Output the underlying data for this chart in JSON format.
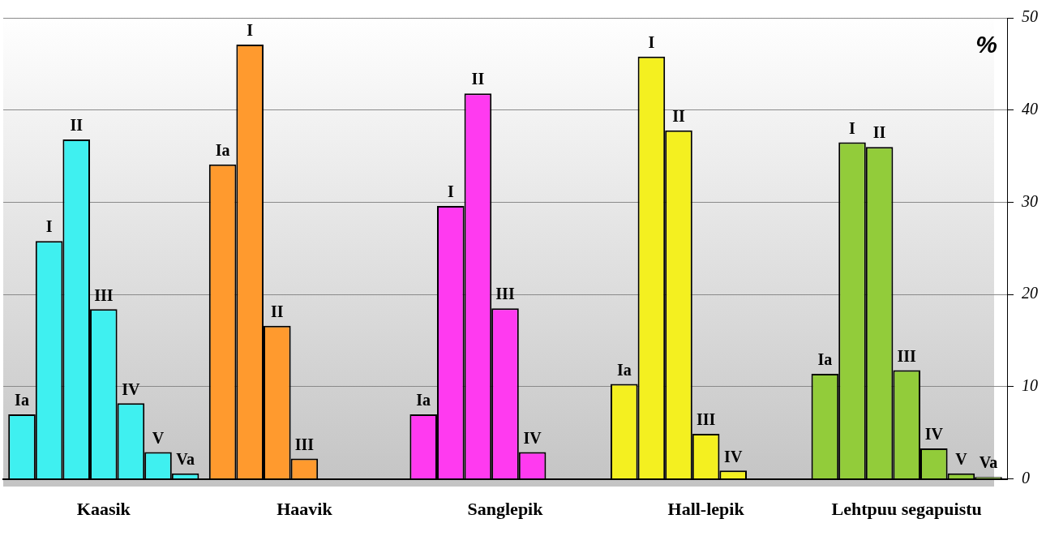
{
  "chart_data": {
    "type": "bar",
    "ylabel": "%",
    "categories": [
      "Kaasik",
      "Haavik",
      "Sanglepik",
      "Hall-lepik",
      "Lehtpuu segapuistu"
    ],
    "series": [
      {
        "name": "Ia",
        "colors": [
          "#3ff0f0",
          "#ff9a2e",
          "#ff3af0",
          "#f4f020",
          "#92cc3a"
        ],
        "values": [
          7.0,
          34.1,
          7.0,
          10.3,
          11.4
        ]
      },
      {
        "name": "I",
        "colors": [
          "#3ff0f0",
          "#ff9a2e",
          "#ff3af0",
          "#f4f020",
          "#92cc3a"
        ],
        "values": [
          25.8,
          47.1,
          29.6,
          45.8,
          36.5
        ]
      },
      {
        "name": "II",
        "colors": [
          "#3ff0f0",
          "#ff9a2e",
          "#ff3af0",
          "#f4f020",
          "#92cc3a"
        ],
        "values": [
          36.8,
          16.6,
          41.8,
          37.8,
          36.0
        ]
      },
      {
        "name": "III",
        "colors": [
          "#3ff0f0",
          "#ff9a2e",
          "#ff3af0",
          "#f4f020",
          "#92cc3a"
        ],
        "values": [
          18.4,
          2.2,
          18.5,
          4.9,
          11.8
        ]
      },
      {
        "name": "IV",
        "colors": [
          "#3ff0f0",
          null,
          "#ff3af0",
          "#f4f020",
          "#92cc3a"
        ],
        "values": [
          8.2,
          null,
          2.9,
          0.9,
          3.3
        ]
      },
      {
        "name": "V",
        "colors": [
          "#3ff0f0",
          null,
          null,
          null,
          "#92cc3a"
        ],
        "values": [
          2.9,
          null,
          null,
          null,
          0.6
        ]
      },
      {
        "name": "Va",
        "colors": [
          "#3ff0f0",
          null,
          null,
          null,
          "#92cc3a"
        ],
        "values": [
          0.6,
          null,
          null,
          null,
          0.2
        ]
      }
    ],
    "ylim": [
      0,
      50
    ],
    "yticks": [
      0,
      10,
      20,
      30,
      40,
      50
    ],
    "grid": "y",
    "legend": false
  }
}
